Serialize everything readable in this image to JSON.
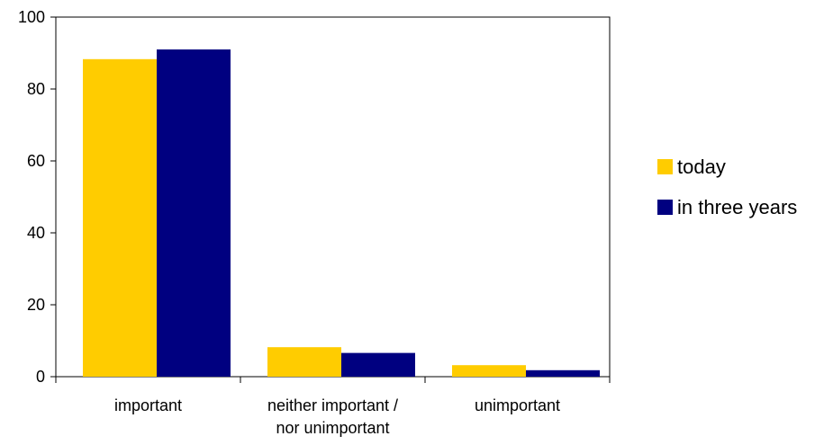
{
  "chart_data": {
    "type": "bar",
    "categories": [
      [
        "important"
      ],
      [
        "neither important /",
        "nor unimportant"
      ],
      [
        "unimportant"
      ]
    ],
    "series": [
      {
        "name": "today",
        "color": "#FFCC00",
        "values": [
          88.3,
          8.2,
          3.2
        ]
      },
      {
        "name": "in three years",
        "color": "#000080",
        "values": [
          91.0,
          6.6,
          1.8
        ]
      }
    ],
    "ylim": [
      0,
      100
    ],
    "yticks": [
      0,
      20,
      40,
      60,
      80,
      100
    ],
    "title": "",
    "xlabel": "",
    "ylabel": "",
    "grid": false,
    "legend_position": "right"
  }
}
